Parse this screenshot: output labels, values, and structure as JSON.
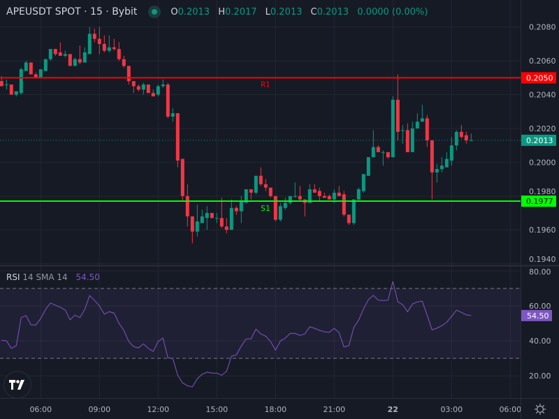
{
  "legend": {
    "symbol_title": "APEUSDT SPOT · 15 · Bybit",
    "o_label": "O",
    "o": "0.2013",
    "h_label": "H",
    "h": "0.2017",
    "l_label": "L",
    "l": "0.2013",
    "c_label": "C",
    "c": "0.2013",
    "change": "0.0000 (0.00%)",
    "status_icon": "market-open-dot-icon"
  },
  "rsi_legend": {
    "name": "RSI",
    "params": "14 SMA 14",
    "value": "54.50"
  },
  "colors": {
    "background": "#161a25",
    "grid": "#242733",
    "up": "#089981",
    "down": "#f23645",
    "resistance": "#ff0000",
    "support": "#00ff00",
    "rsi": "#7e57c2",
    "axis_text": "#b2b5be"
  },
  "chart_data": [
    {
      "type": "candlestick",
      "title": "APEUSDT SPOT · 15 · Bybit",
      "ylim": [
        0.1939,
        0.2096
      ],
      "y_ticks": [
        "0.2080",
        "0.2060",
        "0.2040",
        "0.2020",
        "0.2000",
        "0.1980",
        "0.1960",
        "0.1940"
      ],
      "grid": true,
      "last_price_label": "0.2013",
      "levels": [
        {
          "name": "R1",
          "price": 0.205,
          "label": "0.2050",
          "color": "#ff0000",
          "text_bar": 53
        },
        {
          "name": "S1",
          "price": 0.1977,
          "label": "0.1977",
          "color": "#00ff00",
          "text_bar": 53
        }
      ],
      "ohlc": [
        [
          0.2048,
          0.2051,
          0.2045,
          0.2045
        ],
        [
          0.2046,
          0.2049,
          0.2043,
          0.2046
        ],
        [
          0.2046,
          0.2046,
          0.204,
          0.204
        ],
        [
          0.204,
          0.2042,
          0.2039,
          0.2042
        ],
        [
          0.2041,
          0.2056,
          0.204,
          0.2055
        ],
        [
          0.2054,
          0.206,
          0.2054,
          0.2059
        ],
        [
          0.2059,
          0.2059,
          0.2052,
          0.2052
        ],
        [
          0.2052,
          0.2053,
          0.205,
          0.205
        ],
        [
          0.205,
          0.2055,
          0.205,
          0.2055
        ],
        [
          0.2054,
          0.2061,
          0.2054,
          0.2061
        ],
        [
          0.2061,
          0.2067,
          0.206,
          0.2067
        ],
        [
          0.2067,
          0.2067,
          0.2063,
          0.2064
        ],
        [
          0.2065,
          0.2071,
          0.2063,
          0.2063
        ],
        [
          0.2063,
          0.2066,
          0.2062,
          0.2064
        ],
        [
          0.2064,
          0.2064,
          0.2057,
          0.2057
        ],
        [
          0.2057,
          0.2062,
          0.2057,
          0.2061
        ],
        [
          0.2061,
          0.2069,
          0.2058,
          0.2059
        ],
        [
          0.2059,
          0.2068,
          0.2059,
          0.2065
        ],
        [
          0.2064,
          0.208,
          0.2064,
          0.2076
        ],
        [
          0.2076,
          0.2079,
          0.2071,
          0.2073
        ],
        [
          0.2073,
          0.208,
          0.2064,
          0.207
        ],
        [
          0.207,
          0.2075,
          0.2065,
          0.2066
        ],
        [
          0.2066,
          0.2075,
          0.2065,
          0.2068
        ],
        [
          0.2068,
          0.2073,
          0.2066,
          0.2067
        ],
        [
          0.2067,
          0.2071,
          0.206,
          0.2061
        ],
        [
          0.2061,
          0.2063,
          0.2056,
          0.2057
        ],
        [
          0.2057,
          0.2057,
          0.2046,
          0.2048
        ],
        [
          0.2048,
          0.2048,
          0.2041,
          0.2045
        ],
        [
          0.2045,
          0.2046,
          0.2042,
          0.2043
        ],
        [
          0.2043,
          0.2047,
          0.204,
          0.2046
        ],
        [
          0.2046,
          0.2046,
          0.2041,
          0.2041
        ],
        [
          0.2041,
          0.2043,
          0.2039,
          0.2039
        ],
        [
          0.204,
          0.2046,
          0.2039,
          0.2045
        ],
        [
          0.2045,
          0.2049,
          0.2044,
          0.2046
        ],
        [
          0.2046,
          0.2047,
          0.2026,
          0.2027
        ],
        [
          0.2027,
          0.2032,
          0.2024,
          0.2029
        ],
        [
          0.2029,
          0.2029,
          0.1997,
          0.2001
        ],
        [
          0.2002,
          0.2002,
          0.1977,
          0.198
        ],
        [
          0.198,
          0.1987,
          0.1962,
          0.1968
        ],
        [
          0.1968,
          0.1968,
          0.1952,
          0.1959
        ],
        [
          0.1959,
          0.1975,
          0.1956,
          0.1965
        ],
        [
          0.1964,
          0.1972,
          0.1964,
          0.1968
        ],
        [
          0.1967,
          0.1974,
          0.196,
          0.197
        ],
        [
          0.197,
          0.197,
          0.1967,
          0.1967
        ],
        [
          0.1967,
          0.197,
          0.1964,
          0.1967
        ],
        [
          0.1967,
          0.1979,
          0.1961,
          0.1962
        ],
        [
          0.1962,
          0.1967,
          0.1958,
          0.196
        ],
        [
          0.196,
          0.1978,
          0.196,
          0.1973
        ],
        [
          0.1973,
          0.1974,
          0.1969,
          0.1971
        ],
        [
          0.1971,
          0.198,
          0.1964,
          0.1977
        ],
        [
          0.1976,
          0.1984,
          0.1976,
          0.1984
        ],
        [
          0.1984,
          0.1984,
          0.1978,
          0.1982
        ],
        [
          0.1982,
          0.1992,
          0.1981,
          0.1992
        ],
        [
          0.1992,
          0.1997,
          0.1986,
          0.1987
        ],
        [
          0.1987,
          0.199,
          0.1983,
          0.1985
        ],
        [
          0.1985,
          0.1985,
          0.1979,
          0.198
        ],
        [
          0.198,
          0.198,
          0.1965,
          0.1966
        ],
        [
          0.1966,
          0.1976,
          0.1965,
          0.1974
        ],
        [
          0.1973,
          0.1979,
          0.1972,
          0.1976
        ],
        [
          0.1976,
          0.198,
          0.1975,
          0.198
        ],
        [
          0.198,
          0.1988,
          0.1979,
          0.198
        ],
        [
          0.198,
          0.1986,
          0.1977,
          0.1978
        ],
        [
          0.1978,
          0.1978,
          0.1968,
          0.1976
        ],
        [
          0.1976,
          0.1987,
          0.1976,
          0.1984
        ],
        [
          0.1984,
          0.1987,
          0.1982,
          0.1982
        ],
        [
          0.1983,
          0.1985,
          0.1977,
          0.198
        ],
        [
          0.198,
          0.1982,
          0.1979,
          0.1979
        ],
        [
          0.198,
          0.1981,
          0.1978,
          0.1978
        ],
        [
          0.1978,
          0.1984,
          0.1976,
          0.1982
        ],
        [
          0.1982,
          0.1986,
          0.198,
          0.198
        ],
        [
          0.1981,
          0.1983,
          0.1968,
          0.1969
        ],
        [
          0.1969,
          0.1969,
          0.1963,
          0.1964
        ],
        [
          0.1964,
          0.1978,
          0.1963,
          0.1978
        ],
        [
          0.1978,
          0.1985,
          0.1977,
          0.1984
        ],
        [
          0.1983,
          0.1993,
          0.1982,
          0.1993
        ],
        [
          0.1992,
          0.2003,
          0.1992,
          0.2003
        ],
        [
          0.2003,
          0.2019,
          0.2003,
          0.2009
        ],
        [
          0.2009,
          0.201,
          0.2006,
          0.2006
        ],
        [
          0.2006,
          0.2007,
          0.1998,
          0.2006
        ],
        [
          0.2006,
          0.2006,
          0.2002,
          0.2003
        ],
        [
          0.2003,
          0.2039,
          0.2003,
          0.2037
        ],
        [
          0.2037,
          0.2052,
          0.2013,
          0.2018
        ],
        [
          0.2019,
          0.2022,
          0.2011,
          0.2019
        ],
        [
          0.2019,
          0.2023,
          0.2006,
          0.2006
        ],
        [
          0.2006,
          0.2024,
          0.2006,
          0.202
        ],
        [
          0.202,
          0.2029,
          0.202,
          0.2024
        ],
        [
          0.2024,
          0.2034,
          0.2024,
          0.2026
        ],
        [
          0.2026,
          0.2028,
          0.2009,
          0.2013
        ],
        [
          0.2013,
          0.2013,
          0.1978,
          0.1994
        ],
        [
          0.1994,
          0.1999,
          0.1988,
          0.1996
        ],
        [
          0.1996,
          0.2003,
          0.1994,
          0.1998
        ],
        [
          0.1997,
          0.2006,
          0.1997,
          0.2002
        ],
        [
          0.2001,
          0.2015,
          0.1998,
          0.201
        ],
        [
          0.201,
          0.2019,
          0.2007,
          0.2018
        ],
        [
          0.2018,
          0.2022,
          0.2014,
          0.2015
        ],
        [
          0.2016,
          0.2018,
          0.2011,
          0.2013
        ],
        [
          0.2013,
          0.2017,
          0.2013,
          0.2013
        ]
      ]
    },
    {
      "type": "line",
      "title": "RSI 14 SMA 14",
      "ylim": [
        7.3,
        82.8
      ],
      "y_ticks": [
        "80.00",
        "60.00",
        "40.00",
        "20.00"
      ],
      "bands": [
        30,
        70
      ],
      "last_value_label": "54.50",
      "values": [
        40.3,
        40.0,
        35.7,
        37.3,
        53.3,
        54.5,
        49.2,
        49.1,
        52.8,
        58.0,
        61.7,
        60.4,
        59.2,
        57.7,
        52.1,
        54.7,
        53.3,
        58.0,
        65.9,
        63.1,
        60.0,
        55.3,
        56.7,
        55.9,
        50.0,
        46.0,
        39.6,
        36.7,
        36.0,
        38.3,
        35.7,
        34.0,
        39.6,
        41.6,
        30.3,
        30.0,
        20.4,
        16.0,
        14.3,
        13.7,
        18.3,
        20.9,
        22.1,
        21.6,
        21.6,
        20.3,
        22.7,
        31.2,
        32.0,
        37.1,
        41.1,
        41.2,
        46.7,
        44.0,
        42.7,
        39.6,
        34.7,
        40.0,
        41.6,
        44.3,
        44.3,
        43.1,
        44.0,
        48.1,
        47.2,
        46.0,
        45.2,
        44.9,
        47.2,
        44.7,
        36.5,
        37.3,
        47.6,
        51.9,
        58.3,
        63.6,
        66.0,
        63.3,
        63.1,
        63.3,
        74.0,
        62.4,
        60.7,
        56.7,
        61.1,
        62.3,
        62.7,
        54.7,
        46.3,
        47.3,
        48.7,
        50.7,
        54.0,
        57.6,
        56.3,
        54.9,
        54.5
      ]
    }
  ],
  "time_axis": {
    "ticks": [
      {
        "label": "06:00",
        "bar": 8
      },
      {
        "label": "09:00",
        "bar": 20
      },
      {
        "label": "12:00",
        "bar": 32
      },
      {
        "label": "15:00",
        "bar": 44
      },
      {
        "label": "18:00",
        "bar": 56
      },
      {
        "label": "21:00",
        "bar": 68
      },
      {
        "label": "22",
        "bar": 80,
        "bold": true
      },
      {
        "label": "03:00",
        "bar": 92
      },
      {
        "label": "06:00",
        "bar": 104
      }
    ]
  },
  "icons": {
    "logo": "tradingview-logo-icon",
    "settings": "settings-sun-icon"
  }
}
